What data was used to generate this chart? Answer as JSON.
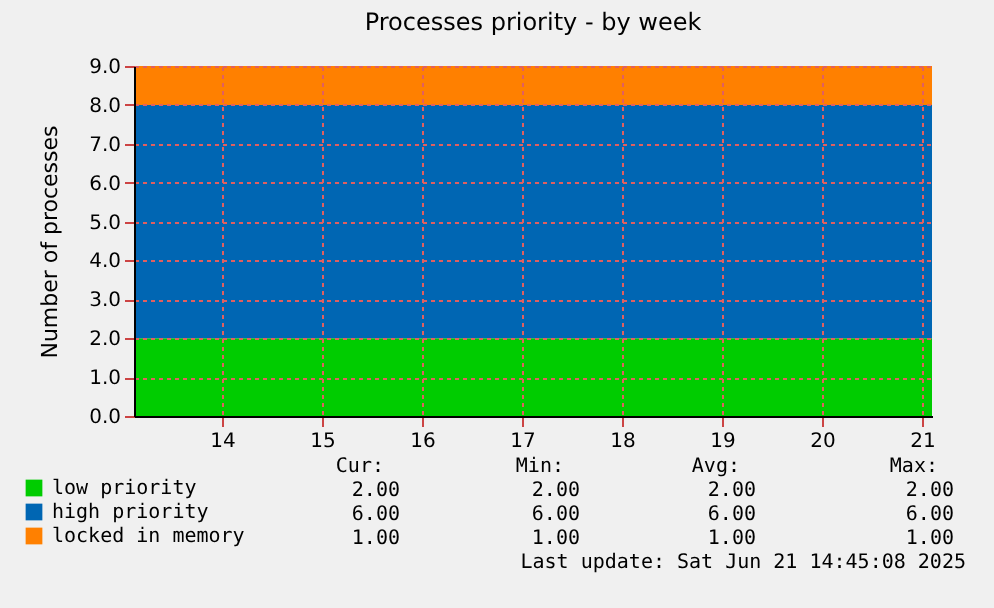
{
  "chart_data": {
    "type": "area",
    "title": "Processes priority - by week",
    "ylabel": "Number of processes",
    "stacked": true,
    "grid": true,
    "legend": "bottom left",
    "x": [
      13.12,
      21.1
    ],
    "xlim": [
      13.12,
      21.1
    ],
    "xticks": [
      14,
      15,
      16,
      17,
      18,
      19,
      20,
      21
    ],
    "ylim": [
      0,
      9
    ],
    "yticks": [
      {
        "value": 0,
        "label": "0.0"
      },
      {
        "value": 1,
        "label": "1.0"
      },
      {
        "value": 2,
        "label": "2.0"
      },
      {
        "value": 3,
        "label": "3.0"
      },
      {
        "value": 4,
        "label": "4.0"
      },
      {
        "value": 5,
        "label": "5.0"
      },
      {
        "value": 6,
        "label": "6.0"
      },
      {
        "value": 7,
        "label": "7.0"
      },
      {
        "value": 8,
        "label": "8.0"
      },
      {
        "value": 9,
        "label": "9.0"
      }
    ],
    "series": [
      {
        "name": "low priority",
        "color": "#00cc00",
        "values": [
          2,
          2
        ]
      },
      {
        "name": "high priority",
        "color": "#0066b3",
        "values": [
          6,
          6
        ]
      },
      {
        "name": "locked in memory",
        "color": "#ff8000",
        "values": [
          1,
          1
        ]
      }
    ],
    "annotations": [
      "Cur:",
      "Min:",
      "Avg:",
      "Max:",
      "2.00",
      "2.00",
      "2.00",
      "2.00",
      "6.00",
      "6.00",
      "6.00",
      "6.00",
      "1.00",
      "1.00",
      "1.00",
      "1.00",
      "Last update: Sat Jun 21 14:45:08 2025"
    ]
  }
}
